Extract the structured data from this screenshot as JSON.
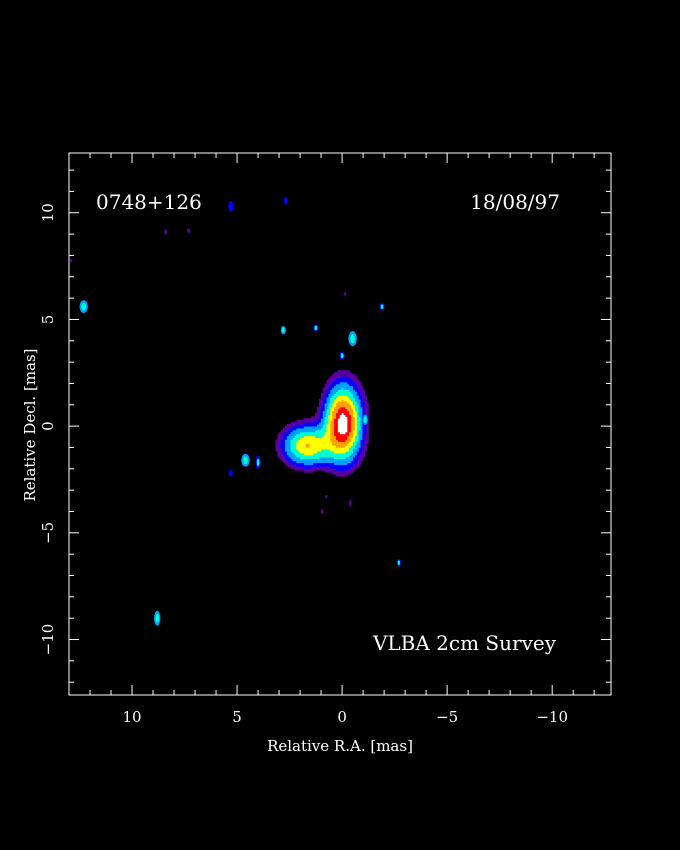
{
  "chart_data": {
    "type": "heatmap",
    "source_name": "0748+126",
    "date": "18/08/97",
    "survey_label": "VLBA 2cm Survey",
    "xlabel": "Relative R.A. [mas]",
    "ylabel": "Relative Decl. [mas]",
    "xlim": [
      13,
      -12.8
    ],
    "ylim": [
      -12.6,
      12.8
    ],
    "x_ticks": [
      10,
      5,
      0,
      -5,
      -10
    ],
    "x_tick_labels": [
      "10",
      "5",
      "0",
      "−5",
      "−10"
    ],
    "y_ticks": [
      10,
      5,
      0,
      -5,
      -10
    ],
    "y_tick_labels": [
      "10",
      "5",
      "0",
      "−5",
      "−10"
    ],
    "colormap": [
      "#5a00a0",
      "#0000ff",
      "#00a0ff",
      "#00ffd0",
      "#ffff00",
      "#ffa000",
      "#ff0000",
      "#ffffff"
    ],
    "background": "#000000",
    "components": [
      {
        "name": "core",
        "x": 0.0,
        "y": 0.2,
        "sx": 0.55,
        "sy": 1.1,
        "peak": 1.0
      },
      {
        "name": "jet",
        "x": 1.7,
        "y": -0.85,
        "sx": 0.75,
        "sy": 0.6,
        "peak": 0.62
      }
    ],
    "noise_features": [
      {
        "x": 12.3,
        "y": 5.6,
        "level": 0.22,
        "w": 0.2,
        "h": 0.3
      },
      {
        "x": 8.8,
        "y": -9.0,
        "level": 0.22,
        "w": 0.15,
        "h": 0.35
      },
      {
        "x": 5.3,
        "y": 10.3,
        "level": 0.18,
        "w": 0.12,
        "h": 0.25
      },
      {
        "x": 2.7,
        "y": 10.55,
        "level": 0.16,
        "w": 0.08,
        "h": 0.18
      },
      {
        "x": 8.4,
        "y": 9.1,
        "level": 0.12,
        "w": 0.06,
        "h": 0.12
      },
      {
        "x": 7.3,
        "y": 9.15,
        "level": 0.12,
        "w": 0.08,
        "h": 0.1
      },
      {
        "x": 2.8,
        "y": 4.5,
        "level": 0.22,
        "w": 0.12,
        "h": 0.2
      },
      {
        "x": 1.25,
        "y": 4.6,
        "level": 0.2,
        "w": 0.12,
        "h": 0.18
      },
      {
        "x": -0.5,
        "y": 4.1,
        "level": 0.26,
        "w": 0.2,
        "h": 0.35
      },
      {
        "x": -1.9,
        "y": 5.6,
        "level": 0.2,
        "w": 0.12,
        "h": 0.18
      },
      {
        "x": -0.15,
        "y": 6.2,
        "level": 0.1,
        "w": 0.05,
        "h": 0.1
      },
      {
        "x": 0.0,
        "y": 3.3,
        "level": 0.2,
        "w": 0.12,
        "h": 0.2
      },
      {
        "x": -1.1,
        "y": 0.3,
        "level": 0.22,
        "w": 0.12,
        "h": 0.25
      },
      {
        "x": 4.6,
        "y": -1.6,
        "level": 0.22,
        "w": 0.2,
        "h": 0.3
      },
      {
        "x": 4.0,
        "y": -1.7,
        "level": 0.2,
        "w": 0.12,
        "h": 0.3
      },
      {
        "x": 5.3,
        "y": -2.2,
        "level": 0.18,
        "w": 0.1,
        "h": 0.15
      },
      {
        "x": 0.75,
        "y": -3.3,
        "level": 0.1,
        "w": 0.05,
        "h": 0.08
      },
      {
        "x": 0.95,
        "y": -4.0,
        "level": 0.12,
        "w": 0.05,
        "h": 0.12
      },
      {
        "x": -0.4,
        "y": -3.6,
        "level": 0.12,
        "w": 0.05,
        "h": 0.15
      },
      {
        "x": -2.7,
        "y": -6.4,
        "level": 0.2,
        "w": 0.1,
        "h": 0.18
      },
      {
        "x": 12.9,
        "y": 7.75,
        "level": 0.08,
        "w": 0.05,
        "h": 0.08
      }
    ]
  }
}
